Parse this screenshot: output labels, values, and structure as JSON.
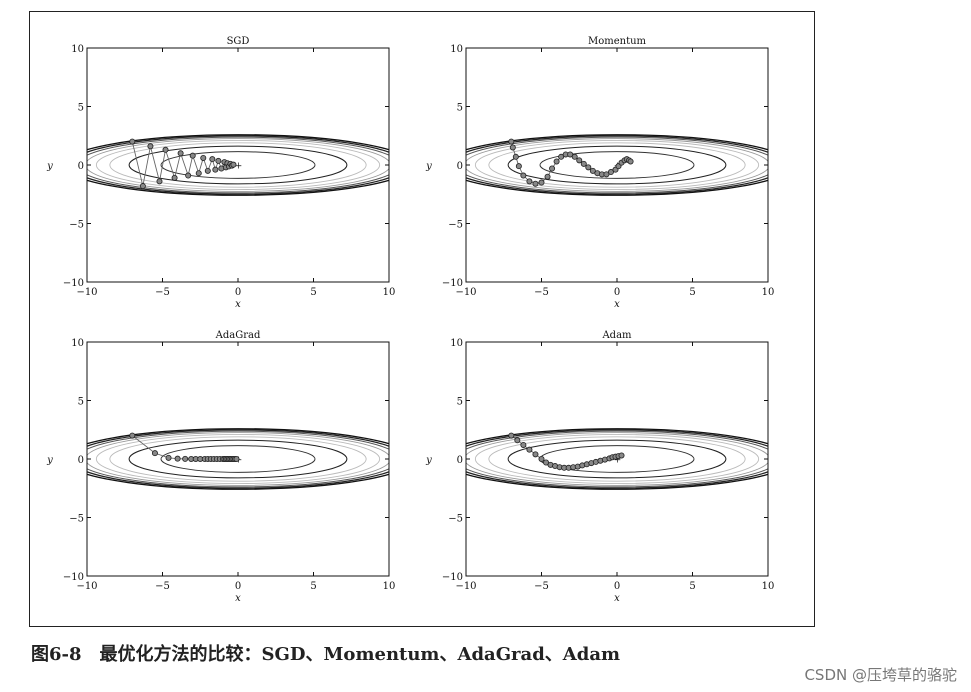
{
  "caption": {
    "figure_number": "图6-8",
    "text": "最优化方法的比较：SGD、Momentum、AdaGrad、Adam"
  },
  "watermark": "CSDN @压垮草的骆驼",
  "chart_data": [
    {
      "type": "line",
      "title": "SGD",
      "xlabel": "x",
      "ylabel": "y",
      "xlim": [
        -10,
        10
      ],
      "ylim": [
        -10,
        10
      ],
      "xticks": [
        -10,
        -5,
        0,
        5,
        10
      ],
      "yticks": [
        10,
        5,
        0,
        -5,
        -10
      ],
      "path_x": [
        -7.0,
        -6.3,
        -5.8,
        -5.2,
        -4.8,
        -4.2,
        -3.8,
        -3.3,
        -3.0,
        -2.6,
        -2.3,
        -2.0,
        -1.7,
        -1.5,
        -1.3,
        -1.1,
        -0.9,
        -0.8,
        -0.7,
        -0.6,
        -0.5,
        -0.4,
        -0.3
      ],
      "path_y": [
        2.0,
        -1.8,
        1.6,
        -1.4,
        1.3,
        -1.1,
        1.0,
        -0.9,
        0.8,
        -0.7,
        0.6,
        -0.5,
        0.5,
        -0.4,
        0.35,
        -0.3,
        0.25,
        -0.2,
        0.15,
        -0.12,
        0.1,
        -0.05,
        0.03
      ]
    },
    {
      "type": "line",
      "title": "Momentum",
      "xlabel": "x",
      "ylabel": "y",
      "xlim": [
        -10,
        10
      ],
      "ylim": [
        -10,
        10
      ],
      "xticks": [
        -10,
        -5,
        0,
        5,
        10
      ],
      "yticks": [
        10,
        5,
        0,
        -5,
        -10
      ],
      "path_x": [
        -7.0,
        -6.9,
        -6.7,
        -6.5,
        -6.2,
        -5.8,
        -5.4,
        -5.0,
        -4.6,
        -4.3,
        -4.0,
        -3.7,
        -3.4,
        -3.1,
        -2.8,
        -2.5,
        -2.2,
        -1.9,
        -1.6,
        -1.3,
        -1.0,
        -0.7,
        -0.4,
        -0.1,
        0.1,
        0.3,
        0.5,
        0.65,
        0.8,
        0.9
      ],
      "path_y": [
        2.0,
        1.5,
        0.7,
        -0.1,
        -0.9,
        -1.4,
        -1.6,
        -1.5,
        -1.0,
        -0.3,
        0.3,
        0.7,
        0.9,
        0.9,
        0.7,
        0.4,
        0.1,
        -0.2,
        -0.5,
        -0.7,
        -0.8,
        -0.8,
        -0.6,
        -0.4,
        -0.1,
        0.2,
        0.4,
        0.5,
        0.4,
        0.3
      ]
    },
    {
      "type": "line",
      "title": "AdaGrad",
      "xlabel": "x",
      "ylabel": "y",
      "xlim": [
        -10,
        10
      ],
      "ylim": [
        -10,
        10
      ],
      "xticks": [
        -10,
        -5,
        0,
        5,
        10
      ],
      "yticks": [
        10,
        5,
        0,
        -5,
        -10
      ],
      "path_x": [
        -7.0,
        -5.5,
        -4.6,
        -4.0,
        -3.5,
        -3.1,
        -2.8,
        -2.5,
        -2.2,
        -2.0,
        -1.8,
        -1.6,
        -1.4,
        -1.2,
        -1.0,
        -0.9,
        -0.8,
        -0.7,
        -0.6,
        -0.5,
        -0.4,
        -0.3,
        -0.2,
        -0.1
      ],
      "path_y": [
        2.0,
        0.5,
        0.1,
        0.03,
        0.01,
        0.0,
        0.0,
        0.0,
        0.0,
        0.0,
        0.0,
        0.0,
        0.0,
        0.0,
        0.0,
        0.0,
        0.0,
        0.0,
        0.0,
        0.0,
        0.0,
        0.0,
        0.0,
        0.0
      ]
    },
    {
      "type": "line",
      "title": "Adam",
      "xlabel": "x",
      "ylabel": "y",
      "xlim": [
        -10,
        10
      ],
      "ylim": [
        -10,
        10
      ],
      "xticks": [
        -10,
        -5,
        0,
        5,
        10
      ],
      "yticks": [
        10,
        5,
        0,
        -5,
        -10
      ],
      "path_x": [
        -7.0,
        -6.6,
        -6.2,
        -5.8,
        -5.4,
        -5.0,
        -4.7,
        -4.4,
        -4.1,
        -3.8,
        -3.5,
        -3.2,
        -2.9,
        -2.6,
        -2.3,
        -2.0,
        -1.7,
        -1.4,
        -1.1,
        -0.8,
        -0.5,
        -0.3,
        -0.1,
        0.1,
        0.3
      ],
      "path_y": [
        2.0,
        1.6,
        1.2,
        0.8,
        0.4,
        0.0,
        -0.3,
        -0.5,
        -0.6,
        -0.7,
        -0.75,
        -0.75,
        -0.7,
        -0.65,
        -0.55,
        -0.45,
        -0.35,
        -0.25,
        -0.15,
        -0.05,
        0.05,
        0.15,
        0.2,
        0.25,
        0.3
      ]
    }
  ]
}
